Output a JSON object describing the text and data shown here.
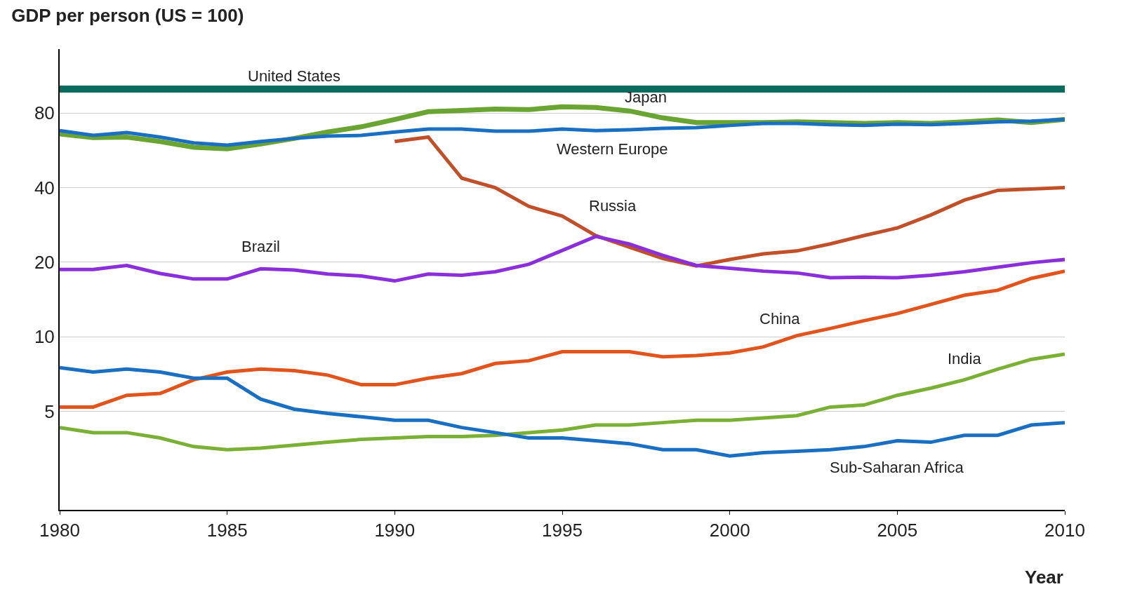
{
  "chart_data": {
    "type": "line",
    "title": "GDP per person (US = 100)",
    "xlabel": "Year",
    "x": [
      1980,
      1981,
      1982,
      1983,
      1984,
      1985,
      1986,
      1987,
      1988,
      1989,
      1990,
      1991,
      1992,
      1993,
      1994,
      1995,
      1996,
      1997,
      1998,
      1999,
      2000,
      2001,
      2002,
      2003,
      2004,
      2005,
      2006,
      2007,
      2008,
      2009,
      2010
    ],
    "series": [
      {
        "name": "United States",
        "color": "#0b6b5c",
        "values": [
          100,
          100,
          100,
          100,
          100,
          100,
          100,
          100,
          100,
          100,
          100,
          100,
          100,
          100,
          100,
          100,
          100,
          100,
          100,
          100,
          100,
          100,
          100,
          100,
          100,
          100,
          100,
          100,
          100,
          100,
          100
        ]
      },
      {
        "name": "Japan",
        "color": "#6aa533",
        "values": [
          65.9,
          63.7,
          64,
          61.4,
          58.2,
          57.4,
          60,
          63.2,
          67.1,
          70.4,
          75.4,
          81,
          82,
          83,
          82.6,
          84.8,
          84.2,
          81.6,
          76.5,
          73.2,
          73.2,
          73.2,
          73.7,
          73.2,
          72.7,
          73.2,
          72.7,
          73.7,
          75,
          73.2,
          75.4
        ]
      },
      {
        "name": "Western Europe",
        "color": "#1a6fc0",
        "values": [
          68,
          65,
          66.7,
          64,
          60.6,
          59.4,
          61.4,
          63.2,
          64.6,
          65,
          67.1,
          68.9,
          68.9,
          67.6,
          67.6,
          68.9,
          68,
          68.5,
          69.4,
          69.9,
          71.3,
          72.7,
          72.7,
          71.8,
          71.3,
          72.2,
          71.8,
          72.7,
          73.7,
          74.2,
          75.4
        ]
      },
      {
        "name": "Russia",
        "color": "#c0502a",
        "values": [
          null,
          null,
          null,
          null,
          null,
          null,
          null,
          null,
          null,
          null,
          61.4,
          64,
          43.7,
          40,
          33.6,
          30.7,
          25.6,
          23,
          20.7,
          19.3,
          20.5,
          21.6,
          22.2,
          23.7,
          25.6,
          27.5,
          31,
          35.6,
          39,
          39.5,
          40
        ]
      },
      {
        "name": "Brazil",
        "color": "#8b30d8",
        "values": [
          18.7,
          18.7,
          19.4,
          18,
          17.1,
          17.1,
          18.8,
          18.6,
          17.9,
          17.6,
          16.8,
          17.9,
          17.7,
          18.3,
          19.6,
          22.3,
          25.4,
          23.7,
          21.3,
          19.4,
          18.9,
          18.4,
          18.1,
          17.3,
          17.4,
          17.3,
          17.7,
          18.3,
          19.1,
          19.9,
          20.5
        ]
      },
      {
        "name": "China",
        "color": "#e0541e",
        "values": [
          5.2,
          5.2,
          5.8,
          5.9,
          6.7,
          7.2,
          7.4,
          7.3,
          7,
          6.4,
          6.4,
          6.8,
          7.1,
          7.8,
          8,
          8.7,
          8.7,
          8.7,
          8.3,
          8.4,
          8.6,
          9.1,
          10.1,
          10.8,
          11.6,
          12.4,
          13.5,
          14.7,
          15.4,
          17.2,
          18.4
        ]
      },
      {
        "name": "India",
        "color": "#7ab036",
        "values": [
          4.3,
          4.1,
          4.1,
          3.9,
          3.6,
          3.5,
          3.55,
          3.65,
          3.75,
          3.85,
          3.9,
          3.95,
          3.95,
          4,
          4.1,
          4.2,
          4.4,
          4.4,
          4.5,
          4.6,
          4.6,
          4.7,
          4.8,
          5.2,
          5.3,
          5.8,
          6.2,
          6.7,
          7.4,
          8.1,
          8.5
        ]
      },
      {
        "name": "Sub-Saharan Africa",
        "color": "#1a6fc0",
        "values": [
          7.5,
          7.2,
          7.4,
          7.2,
          6.8,
          6.8,
          5.6,
          5.1,
          4.9,
          4.75,
          4.6,
          4.6,
          4.3,
          4.1,
          3.9,
          3.9,
          3.8,
          3.7,
          3.5,
          3.5,
          3.3,
          3.4,
          3.45,
          3.5,
          3.6,
          3.8,
          3.75,
          4,
          4,
          4.4,
          4.5
        ]
      }
    ],
    "xlim": [
      1980,
      2010
    ],
    "xticks": [
      1980,
      1985,
      1990,
      1995,
      2000,
      2005,
      2010
    ],
    "ylim": [
      2,
      145
    ],
    "yticks": [
      5,
      10,
      20,
      40,
      80
    ],
    "log": "y",
    "grid": "y",
    "legend": false,
    "line_style": "solid",
    "marker": "none"
  }
}
